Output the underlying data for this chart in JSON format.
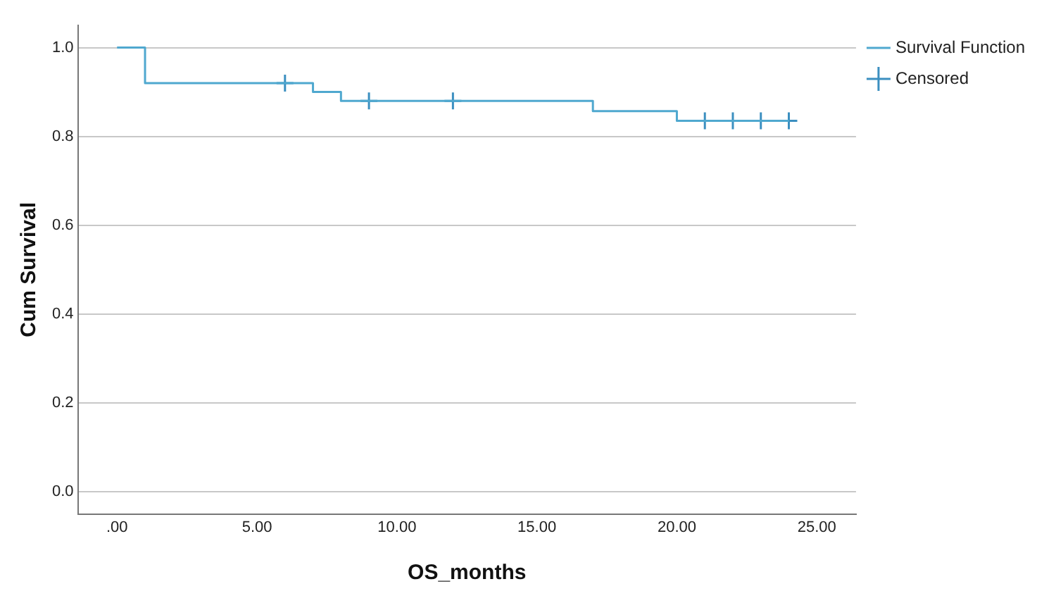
{
  "chart_data": {
    "type": "step",
    "xlabel": "OS_months",
    "ylabel": "Cum Survival",
    "series": [
      {
        "name": "Survival Function",
        "color": "#4fa8cf",
        "x": [
          0,
          1,
          7,
          8,
          17,
          20,
          24
        ],
        "values": [
          1,
          0.92,
          0.9,
          0.88,
          0.857,
          0.835,
          0.835
        ],
        "marker": "none",
        "line_style": "solid"
      },
      {
        "name": "Censored",
        "type": "scatter",
        "color": "#3b8fc0",
        "x": [
          6,
          9,
          12,
          21,
          22,
          23,
          24
        ],
        "values": [
          0.92,
          0.88,
          0.88,
          0.835,
          0.835,
          0.835,
          0.835
        ],
        "marker": "cross"
      }
    ],
    "xlim": [
      -1.4,
      26.4
    ],
    "xticks": [
      {
        "value": 0,
        "label": ".00"
      },
      {
        "value": 5,
        "label": "5.00"
      },
      {
        "value": 10,
        "label": "10.00"
      },
      {
        "value": 15,
        "label": "15.00"
      },
      {
        "value": 20,
        "label": "20.00"
      },
      {
        "value": 25,
        "label": "25.00"
      }
    ],
    "ylim": [
      -0.05,
      1.05
    ],
    "yticks": [
      {
        "value": 0,
        "label": "0.0"
      },
      {
        "value": 0.2,
        "label": "0.2"
      },
      {
        "value": 0.4,
        "label": "0.4"
      },
      {
        "value": 0.6,
        "label": "0.6"
      },
      {
        "value": 0.8,
        "label": "0.8"
      },
      {
        "value": 1,
        "label": "1.0"
      }
    ],
    "grid": "y",
    "legend": "top right"
  }
}
